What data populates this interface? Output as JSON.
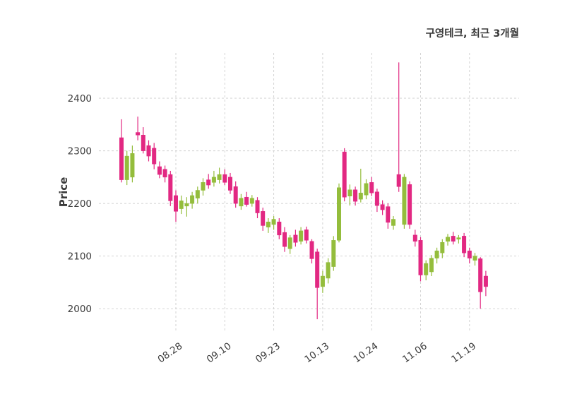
{
  "title": "구영테크, 최근 3개월",
  "chart_data": {
    "type": "candlestick",
    "title": "구영테크, 최근 3개월",
    "ylabel": "Price",
    "xlabel": "",
    "grid": true,
    "legend": false,
    "ylim": [
      1956,
      2486
    ],
    "yticks": [
      2000,
      2100,
      2200,
      2300,
      2400
    ],
    "xtick_labels": [
      "08.28",
      "09.10",
      "09.23",
      "10.13",
      "10.24",
      "11.06",
      "11.19"
    ],
    "xtick_indices": [
      10,
      19,
      28,
      37,
      46,
      55,
      64
    ],
    "up_color": "#94bd3c",
    "down_color": "#e22882",
    "grid_color": "#cfcfcf",
    "ohlc_format": [
      "open",
      "high",
      "low",
      "close"
    ],
    "ohlc": [
      [
        2325,
        2360,
        2240,
        2245
      ],
      [
        2245,
        2300,
        2235,
        2290
      ],
      [
        2250,
        2310,
        2240,
        2295
      ],
      [
        2335,
        2365,
        2320,
        2330
      ],
      [
        2330,
        2345,
        2295,
        2300
      ],
      [
        2310,
        2320,
        2280,
        2290
      ],
      [
        2305,
        2315,
        2265,
        2275
      ],
      [
        2270,
        2280,
        2248,
        2255
      ],
      [
        2265,
        2272,
        2240,
        2250
      ],
      [
        2255,
        2262,
        2195,
        2205
      ],
      [
        2215,
        2225,
        2165,
        2185
      ],
      [
        2190,
        2215,
        2180,
        2205
      ],
      [
        2195,
        2212,
        2175,
        2200
      ],
      [
        2200,
        2222,
        2190,
        2215
      ],
      [
        2210,
        2232,
        2200,
        2225
      ],
      [
        2225,
        2248,
        2215,
        2240
      ],
      [
        2245,
        2256,
        2228,
        2235
      ],
      [
        2240,
        2262,
        2232,
        2250
      ],
      [
        2245,
        2268,
        2238,
        2255
      ],
      [
        2255,
        2265,
        2235,
        2240
      ],
      [
        2250,
        2258,
        2218,
        2225
      ],
      [
        2232,
        2242,
        2192,
        2200
      ],
      [
        2195,
        2218,
        2188,
        2210
      ],
      [
        2212,
        2222,
        2194,
        2198
      ],
      [
        2200,
        2216,
        2194,
        2210
      ],
      [
        2206,
        2212,
        2172,
        2182
      ],
      [
        2185,
        2192,
        2148,
        2158
      ],
      [
        2155,
        2172,
        2144,
        2165
      ],
      [
        2160,
        2176,
        2150,
        2170
      ],
      [
        2165,
        2172,
        2132,
        2140
      ],
      [
        2145,
        2155,
        2108,
        2118
      ],
      [
        2114,
        2140,
        2104,
        2135
      ],
      [
        2140,
        2150,
        2118,
        2126
      ],
      [
        2128,
        2155,
        2122,
        2148
      ],
      [
        2150,
        2156,
        2124,
        2130
      ],
      [
        2128,
        2132,
        2086,
        2095
      ],
      [
        2108,
        2114,
        1980,
        2040
      ],
      [
        2042,
        2072,
        2030,
        2062
      ],
      [
        2058,
        2096,
        2048,
        2088
      ],
      [
        2080,
        2138,
        2072,
        2130
      ],
      [
        2130,
        2238,
        2126,
        2230
      ],
      [
        2298,
        2305,
        2204,
        2212
      ],
      [
        2214,
        2236,
        2196,
        2226
      ],
      [
        2226,
        2232,
        2196,
        2204
      ],
      [
        2208,
        2266,
        2202,
        2220
      ],
      [
        2216,
        2246,
        2208,
        2238
      ],
      [
        2240,
        2250,
        2214,
        2220
      ],
      [
        2222,
        2228,
        2184,
        2196
      ],
      [
        2198,
        2206,
        2178,
        2188
      ],
      [
        2194,
        2200,
        2152,
        2164
      ],
      [
        2158,
        2176,
        2150,
        2170
      ],
      [
        2255,
        2468,
        2222,
        2232
      ],
      [
        2160,
        2256,
        2152,
        2250
      ],
      [
        2236,
        2242,
        2152,
        2160
      ],
      [
        2140,
        2150,
        2118,
        2128
      ],
      [
        2130,
        2136,
        2052,
        2064
      ],
      [
        2064,
        2092,
        2054,
        2086
      ],
      [
        2070,
        2102,
        2062,
        2096
      ],
      [
        2096,
        2116,
        2086,
        2110
      ],
      [
        2106,
        2132,
        2096,
        2126
      ],
      [
        2128,
        2142,
        2120,
        2136
      ],
      [
        2138,
        2146,
        2122,
        2128
      ],
      [
        2132,
        2140,
        2124,
        2135
      ],
      [
        2138,
        2144,
        2098,
        2106
      ],
      [
        2110,
        2116,
        2086,
        2096
      ],
      [
        2092,
        2106,
        2082,
        2100
      ],
      [
        2095,
        2098,
        2000,
        2032
      ],
      [
        2062,
        2072,
        2024,
        2042
      ]
    ]
  }
}
